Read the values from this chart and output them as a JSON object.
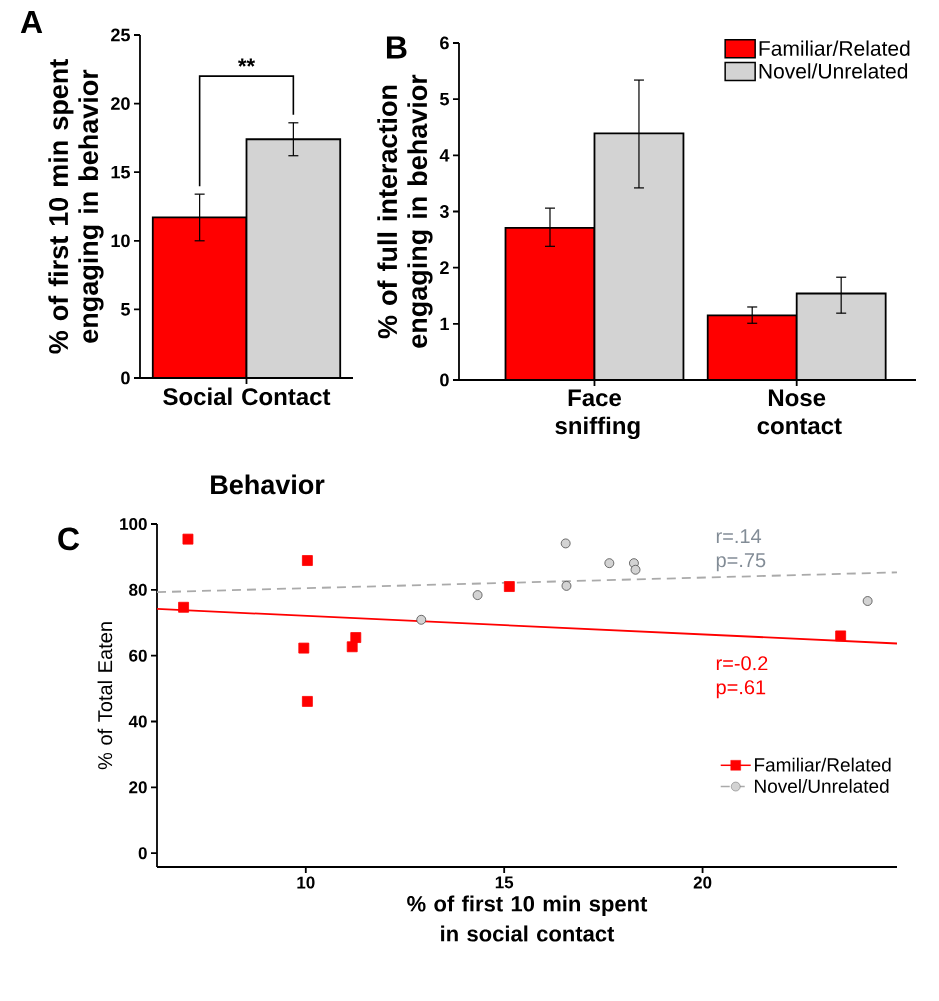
{
  "chart_data": [
    {
      "type": "bar",
      "title": "A",
      "ylabel": "% of first 10 min spent engaging in behavior",
      "categories": [
        "Social Contact"
      ],
      "series": [
        {
          "color": "#ff0000",
          "values": [
            11.7
          ],
          "errors": [
            [
              10.0,
              13.4
            ]
          ]
        },
        {
          "color": "#d3d3d3",
          "values": [
            17.4
          ],
          "errors": [
            [
              16.2,
              18.6
            ]
          ]
        }
      ],
      "ylim": [
        0,
        25
      ],
      "yticks": [
        0,
        5,
        10,
        15,
        20,
        25
      ],
      "annotations": [
        "**"
      ]
    },
    {
      "type": "bar",
      "title": "B",
      "ylabel": "% of full interaction engaging in behavior",
      "xlabel": "Behavior",
      "categories": [
        "Face sniffing",
        "Nose contact"
      ],
      "series": [
        {
          "name": "Familiar/Related",
          "color": "#ff0000",
          "values": [
            2.71,
            1.15
          ],
          "errors": [
            [
              2.38,
              3.06
            ],
            [
              1.01,
              1.3
            ]
          ]
        },
        {
          "name": "Novel/Unrelated",
          "color": "#d3d3d3",
          "values": [
            4.39,
            1.54
          ],
          "errors": [
            [
              3.42,
              5.34
            ],
            [
              1.19,
              1.83
            ]
          ]
        }
      ],
      "ylim": [
        0,
        6
      ],
      "yticks": [
        0,
        1,
        2,
        3,
        4,
        5,
        6
      ],
      "legend": "top right"
    },
    {
      "type": "scatter",
      "title": "C",
      "xlabel": "% of first 10 min spent in social contact",
      "ylabel": "% of Total Eaten",
      "series": [
        {
          "name": "Familiar/Related",
          "color": "#ff0000",
          "marker": "square",
          "x": [
            7.03,
            6.92,
            10.04,
            9.95,
            10.04,
            11.17,
            11.26,
            15.13,
            23.48
          ],
          "values": [
            95.4,
            74.7,
            88.9,
            62.3,
            46.1,
            62.7,
            65.5,
            81.0,
            66.0
          ]
        },
        {
          "name": "Novel/Unrelated",
          "color": "#d3d3d3",
          "marker": "circle",
          "x": [
            12.91,
            14.33,
            16.55,
            16.57,
            17.65,
            18.27,
            18.31,
            24.16
          ],
          "values": [
            70.9,
            78.4,
            94.1,
            81.2,
            88.1,
            88.1,
            86.1,
            76.6
          ]
        },
        {
          "type": "line",
          "color": "#ff0000",
          "line_style": "solid",
          "x": [
            6.25,
            24.9
          ],
          "values": [
            74.2,
            63.7
          ]
        },
        {
          "type": "line",
          "color": "#aaaaaa",
          "line_style": "dashed",
          "x": [
            6.25,
            24.9
          ],
          "values": [
            79.3,
            85.3
          ]
        }
      ],
      "xlim": [
        6.25,
        24.9
      ],
      "ylim": [
        -4.2,
        100
      ],
      "xticks": [
        10,
        15,
        20
      ],
      "yticks": [
        0,
        20,
        40,
        60,
        80,
        100
      ],
      "legend": "bottom right",
      "annotations": [
        "r=.14",
        "p=.75",
        "r=-0.2",
        "p=.61"
      ]
    }
  ]
}
